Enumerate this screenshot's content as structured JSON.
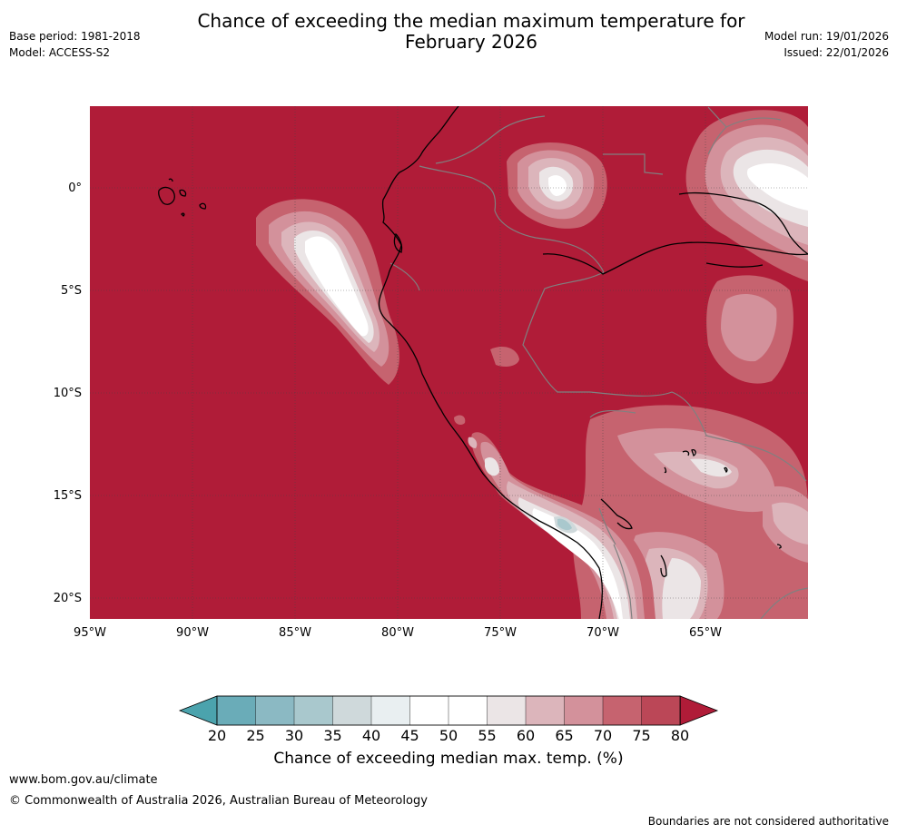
{
  "header": {
    "title_line1": "Chance of exceeding the median maximum temperature for",
    "title_line2": "February 2026",
    "base_period": "Base period: 1981-2018",
    "model": "Model: ACCESS-S2",
    "model_run": "Model run: 19/01/2026",
    "issued": "Issued: 22/01/2026"
  },
  "map": {
    "lat_labels": [
      "0°",
      "5°S",
      "10°S",
      "15°S",
      "20°S"
    ],
    "lon_labels": [
      "95°W",
      "90°W",
      "85°W",
      "80°W",
      "75°W",
      "70°W",
      "65°W"
    ],
    "background_color": "#b01c38"
  },
  "colorbar": {
    "ticks": [
      "20",
      "25",
      "30",
      "35",
      "40",
      "45",
      "50",
      "55",
      "60",
      "65",
      "70",
      "75",
      "80"
    ],
    "colors": [
      "#6aacb8",
      "#8bb9c3",
      "#a9c8cd",
      "#cfd9db",
      "#e9eff1",
      "#ffffff",
      "#ffffff",
      "#ebe5e6",
      "#dcb5bb",
      "#d3919b",
      "#c6636f",
      "#bb4757"
    ],
    "under_color": "#4ba3ad",
    "over_color": "#b01c38",
    "label": "Chance of exceeding median max. temp. (%)"
  },
  "footer": {
    "url": "www.bom.gov.au/climate",
    "copyright": "© Commonwealth of Australia 2026, Australian Bureau of Meteorology",
    "disclaimer": "Boundaries are not considered authoritative"
  }
}
